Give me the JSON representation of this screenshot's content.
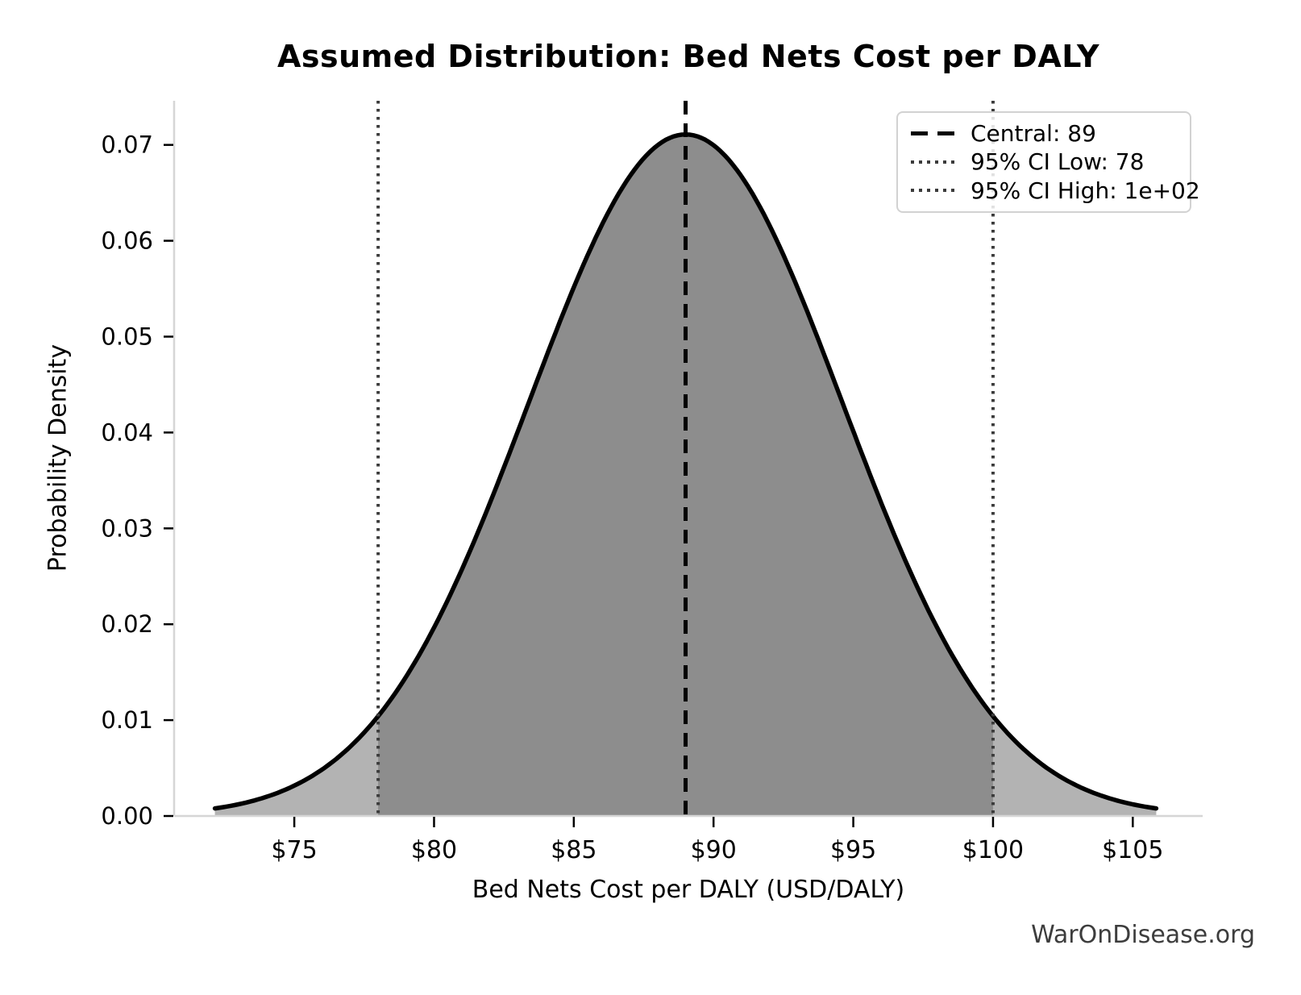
{
  "figure": {
    "watermark": "WarOnDisease.org"
  },
  "chart_data": {
    "type": "area",
    "title": "Assumed Distribution: Bed Nets Cost per DALY",
    "xlabel": "Bed Nets Cost per DALY (USD/DALY)",
    "ylabel": "Probability Density",
    "distribution": {
      "kind": "normal",
      "mean": 89,
      "sigma": 5.612,
      "peak_density": 0.071
    },
    "central": 89,
    "ci_low": 78,
    "ci_high": 100,
    "ci_level": "95%",
    "key_points": [
      {
        "x": 78,
        "density": 0.0104
      },
      {
        "x": 89,
        "density": 0.071
      },
      {
        "x": 100,
        "density": 0.0104
      }
    ],
    "curve_x_range": [
      72.16,
      105.84
    ],
    "xlim": [
      70.7,
      107.5
    ],
    "ylim": [
      0,
      0.0746
    ],
    "grid": false,
    "x_ticks": [
      {
        "value": 75,
        "label": "$75"
      },
      {
        "value": 80,
        "label": "$80"
      },
      {
        "value": 85,
        "label": "$85"
      },
      {
        "value": 90,
        "label": "$90"
      },
      {
        "value": 95,
        "label": "$95"
      },
      {
        "value": 100,
        "label": "$100"
      },
      {
        "value": 105,
        "label": "$105"
      }
    ],
    "y_ticks": [
      {
        "value": 0.0,
        "label": "0.00"
      },
      {
        "value": 0.01,
        "label": "0.01"
      },
      {
        "value": 0.02,
        "label": "0.02"
      },
      {
        "value": 0.03,
        "label": "0.03"
      },
      {
        "value": 0.04,
        "label": "0.04"
      },
      {
        "value": 0.05,
        "label": "0.05"
      },
      {
        "value": 0.06,
        "label": "0.06"
      },
      {
        "value": 0.07,
        "label": "0.07"
      }
    ],
    "legend": {
      "position": "upper right",
      "entries": [
        {
          "label": "Central: 89",
          "style": "dashed"
        },
        {
          "label": "95% CI Low: 78",
          "style": "dotted"
        },
        {
          "label": "95% CI High: 1e+02",
          "style": "dotted"
        }
      ]
    },
    "colors": {
      "curve": "#000000",
      "fill_outer": "#b3b3b3",
      "fill_inner": "#8d8d8d",
      "central_line": "#000000",
      "ci_line": "#3b3b3b",
      "spine": "#d6d6d6",
      "tick": "#000000",
      "text": "#000000",
      "watermark": "#3d3d3d"
    }
  }
}
